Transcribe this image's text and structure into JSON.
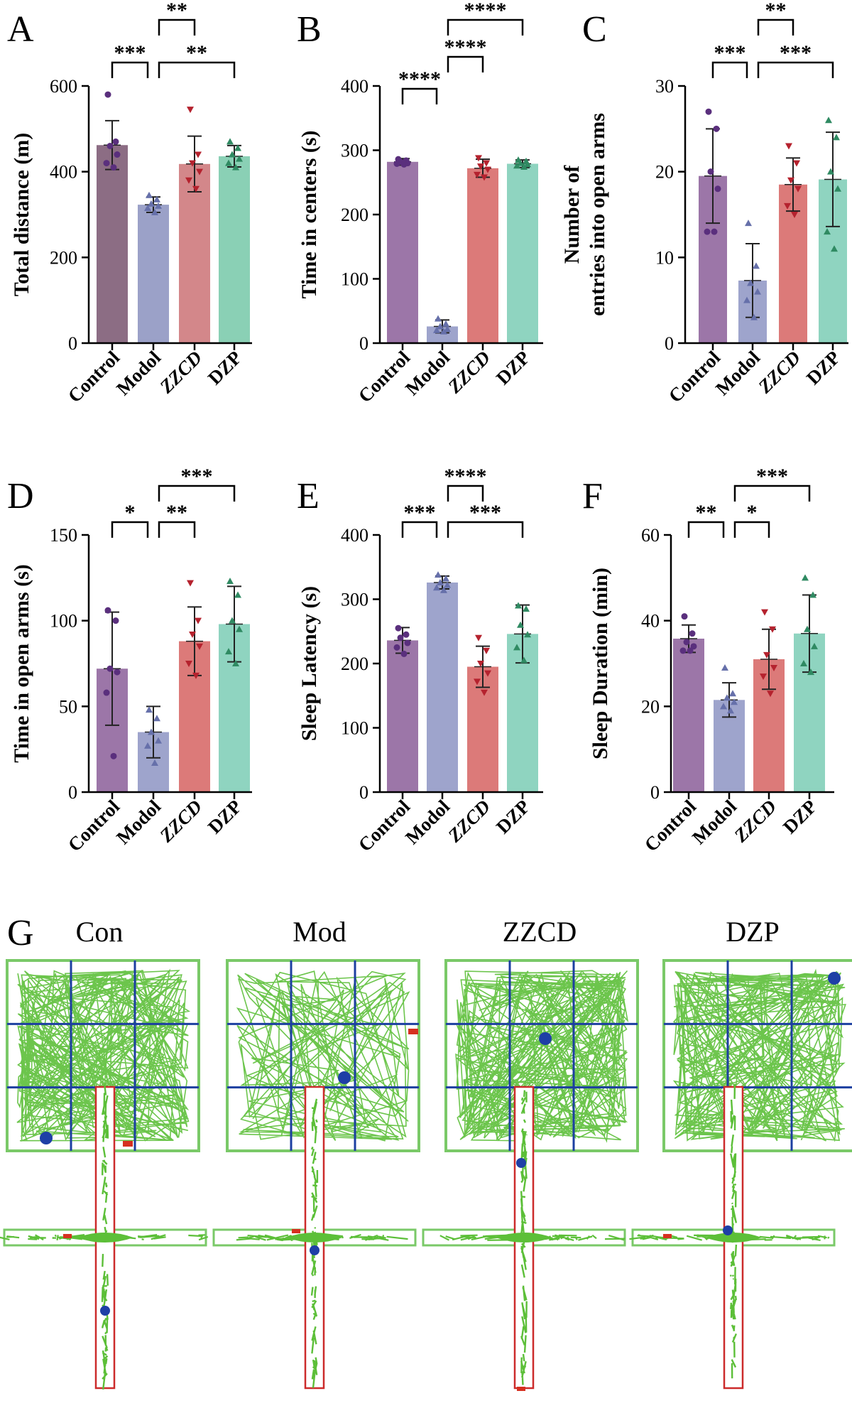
{
  "colors": {
    "Control_A": "#8c6d84",
    "Modol_A": "#9ba1c8",
    "ZZCD_A": "#d3878a",
    "DZP_A": "#8ad0b5",
    "Control": "#9c76a8",
    "Modol": "#9ea4cc",
    "ZZCD": "#dc7a79",
    "DZP": "#8fd4c0",
    "Control_pt": "#5a2f7d",
    "Modol_pt": "#6670aa",
    "ZZCD_pt": "#b5222e",
    "DZP_pt": "#2f8a62",
    "track_green": "#5cbf38",
    "grid_blue": "#1c3fa0",
    "border_green": "#7ac968",
    "arm_red": "#cc2b2b",
    "marker_blue": "#1e3fa6",
    "marker_red": "#d63020"
  },
  "chart_data": [
    {
      "panel": "A",
      "type": "bar",
      "ylabel": "Total distance (m)",
      "categories": [
        "Control",
        "Modol",
        "ZZCD",
        "DZP"
      ],
      "italic_categories": [
        "ZZCD"
      ],
      "ylim": [
        0,
        600
      ],
      "yticks": [
        0,
        200,
        400,
        600
      ],
      "values": [
        462,
        323,
        418,
        436
      ],
      "errors": [
        57,
        18,
        65,
        25
      ],
      "points": [
        [
          580,
          470,
          460,
          440,
          420,
          410
        ],
        [
          345,
          335,
          325,
          320,
          315,
          305
        ],
        [
          545,
          440,
          420,
          400,
          380,
          360
        ],
        [
          470,
          455,
          440,
          430,
          420,
          410
        ]
      ],
      "comparisons": [
        {
          "from": 0,
          "to": 1,
          "label": "***",
          "level": 1
        },
        {
          "from": 1,
          "to": 3,
          "label": "**",
          "level": 1
        },
        {
          "from": 1,
          "to": 2,
          "label": "**",
          "level": 2
        }
      ]
    },
    {
      "panel": "B",
      "type": "bar",
      "ylabel": "Time in centers (s)",
      "categories": [
        "Control",
        "Modol",
        "ZZCD",
        "DZP"
      ],
      "italic_categories": [
        "ZZCD"
      ],
      "ylim": [
        0,
        400
      ],
      "yticks": [
        0,
        100,
        200,
        300,
        400
      ],
      "values": [
        282,
        26,
        272,
        279
      ],
      "errors": [
        5,
        10,
        14,
        6
      ],
      "points": [
        [
          286,
          284,
          282,
          280,
          279,
          278
        ],
        [
          38,
          30,
          26,
          22,
          20,
          18
        ],
        [
          288,
          280,
          275,
          270,
          262,
          258
        ],
        [
          285,
          283,
          280,
          278,
          276,
          274
        ]
      ],
      "comparisons": [
        {
          "from": 0,
          "to": 1,
          "label": "****",
          "level": 1
        },
        {
          "from": 1,
          "to": 2,
          "label": "****",
          "level": 2
        },
        {
          "from": 1,
          "to": 3,
          "label": "****",
          "level": 3
        }
      ]
    },
    {
      "panel": "C",
      "type": "bar",
      "ylabel": "Number of entries into open arms",
      "ylabel_lines": [
        "Number of",
        "entries into open arms"
      ],
      "categories": [
        "Control",
        "Modol",
        "ZZCD",
        "DZP"
      ],
      "italic_categories": [
        "ZZCD"
      ],
      "ylim": [
        0,
        30
      ],
      "yticks": [
        0,
        10,
        20,
        30
      ],
      "values": [
        19.5,
        7.3,
        18.5,
        19.1
      ],
      "errors": [
        5.5,
        4.3,
        3.1,
        5.5
      ],
      "points": [
        [
          27,
          25,
          20,
          18,
          13,
          13
        ],
        [
          14,
          9,
          7,
          6,
          5,
          3
        ],
        [
          23,
          21,
          19,
          18,
          16,
          15
        ],
        [
          26,
          24,
          20,
          18,
          13,
          11
        ]
      ],
      "comparisons": [
        {
          "from": 0,
          "to": 1,
          "label": "***",
          "level": 1
        },
        {
          "from": 1,
          "to": 3,
          "label": "***",
          "level": 1
        },
        {
          "from": 1,
          "to": 2,
          "label": "**",
          "level": 2
        }
      ]
    },
    {
      "panel": "D",
      "type": "bar",
      "ylabel": "Time in open arms (s)",
      "categories": [
        "Control",
        "Modol",
        "ZZCD",
        "DZP"
      ],
      "italic_categories": [
        "ZZCD"
      ],
      "ylim": [
        0,
        150
      ],
      "yticks": [
        0,
        50,
        100,
        150
      ],
      "values": [
        72,
        35,
        88,
        98
      ],
      "errors": [
        33,
        15,
        20,
        22
      ],
      "points": [
        [
          106,
          100,
          72,
          70,
          58,
          21
        ],
        [
          48,
          43,
          35,
          30,
          27,
          17
        ],
        [
          122,
          100,
          92,
          85,
          75,
          68
        ],
        [
          123,
          115,
          100,
          95,
          82,
          75
        ]
      ],
      "comparisons": [
        {
          "from": 0,
          "to": 1,
          "label": "*",
          "level": 1
        },
        {
          "from": 1,
          "to": 2,
          "label": "**",
          "level": 1
        },
        {
          "from": 1,
          "to": 3,
          "label": "***",
          "level": 2
        }
      ]
    },
    {
      "panel": "E",
      "type": "bar",
      "ylabel": "Sleep Latency (s)",
      "categories": [
        "Control",
        "Modol",
        "ZZCD",
        "DZP"
      ],
      "italic_categories": [
        "ZZCD"
      ],
      "ylim": [
        0,
        400
      ],
      "yticks": [
        0,
        100,
        200,
        300,
        400
      ],
      "values": [
        236,
        326,
        195,
        246
      ],
      "errors": [
        20,
        10,
        32,
        45
      ],
      "points": [
        [
          255,
          245,
          240,
          232,
          225,
          215
        ],
        [
          338,
          332,
          326,
          322,
          318,
          314
        ],
        [
          240,
          220,
          200,
          185,
          172,
          155
        ],
        [
          290,
          285,
          260,
          245,
          225,
          205
        ]
      ],
      "comparisons": [
        {
          "from": 0,
          "to": 1,
          "label": "***",
          "level": 1
        },
        {
          "from": 1,
          "to": 3,
          "label": "***",
          "level": 1
        },
        {
          "from": 1,
          "to": 2,
          "label": "****",
          "level": 2
        }
      ]
    },
    {
      "panel": "F",
      "type": "bar",
      "ylabel": "Sleep Duration (min)",
      "categories": [
        "Control",
        "Modol",
        "ZZCD",
        "DZP"
      ],
      "italic_categories": [
        "ZZCD"
      ],
      "ylim": [
        0,
        60
      ],
      "yticks": [
        0,
        20,
        40,
        60
      ],
      "values": [
        35.8,
        21.5,
        31,
        37
      ],
      "errors": [
        3.2,
        4,
        7,
        9
      ],
      "points": [
        [
          41,
          37,
          35,
          34,
          33,
          33
        ],
        [
          29,
          23,
          22,
          21,
          20,
          19
        ],
        [
          42,
          38,
          32,
          29,
          27,
          23
        ],
        [
          50,
          46,
          38,
          34,
          30,
          28
        ]
      ],
      "comparisons": [
        {
          "from": 0,
          "to": 1,
          "label": "**",
          "level": 1
        },
        {
          "from": 1,
          "to": 2,
          "label": "*",
          "level": 1
        },
        {
          "from": 1,
          "to": 3,
          "label": "***",
          "level": 2
        }
      ]
    }
  ],
  "panel_g": {
    "letter": "G",
    "groups": [
      "Con",
      "Mod",
      "ZZCD",
      "DZP"
    ],
    "open_field_crossings": [
      1600,
      700,
      1500,
      1400
    ],
    "maze_arm_fill": [
      1.0,
      0.78,
      0.9,
      1.0
    ]
  }
}
